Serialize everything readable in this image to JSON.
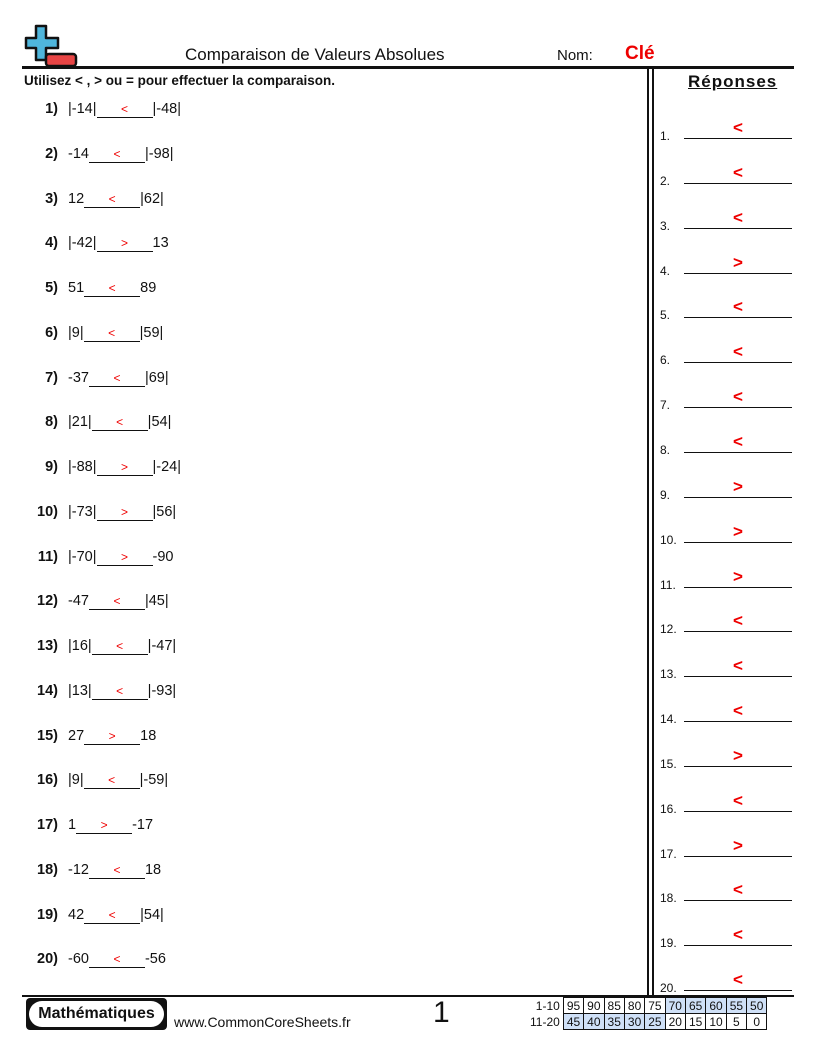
{
  "header": {
    "title": "Comparaison de Valeurs Absolues",
    "name_label": "Nom:",
    "name_value": "Clé"
  },
  "instructions": "Utilisez < , > ou = pour effectuer la comparaison.",
  "answers_title": "Réponses",
  "problems": [
    {
      "num": "1)",
      "left": "|-14|",
      "answer": "<",
      "right": "|-48|"
    },
    {
      "num": "2)",
      "left": "-14",
      "answer": "<",
      "right": "|-98|"
    },
    {
      "num": "3)",
      "left": "12",
      "answer": "<",
      "right": "|62|"
    },
    {
      "num": "4)",
      "left": "|-42|",
      "answer": ">",
      "right": "13"
    },
    {
      "num": "5)",
      "left": "51",
      "answer": "<",
      "right": "89"
    },
    {
      "num": "6)",
      "left": "|9|",
      "answer": "<",
      "right": "|59|"
    },
    {
      "num": "7)",
      "left": "-37",
      "answer": "<",
      "right": "|69|"
    },
    {
      "num": "8)",
      "left": "|21|",
      "answer": "<",
      "right": "|54|"
    },
    {
      "num": "9)",
      "left": "|-88|",
      "answer": ">",
      "right": "|-24|"
    },
    {
      "num": "10)",
      "left": "|-73|",
      "answer": ">",
      "right": "|56|"
    },
    {
      "num": "11)",
      "left": "|-70|",
      "answer": ">",
      "right": "-90"
    },
    {
      "num": "12)",
      "left": "-47",
      "answer": "<",
      "right": "|45|"
    },
    {
      "num": "13)",
      "left": "|16|",
      "answer": "<",
      "right": "|-47|"
    },
    {
      "num": "14)",
      "left": "|13|",
      "answer": "<",
      "right": "|-93|"
    },
    {
      "num": "15)",
      "left": "27",
      "answer": ">",
      "right": "18"
    },
    {
      "num": "16)",
      "left": "|9|",
      "answer": "<",
      "right": "|-59|"
    },
    {
      "num": "17)",
      "left": "1",
      "answer": ">",
      "right": "-17"
    },
    {
      "num": "18)",
      "left": "-12",
      "answer": "<",
      "right": "18"
    },
    {
      "num": "19)",
      "left": "42",
      "answer": "<",
      "right": "|54|"
    },
    {
      "num": "20)",
      "left": "-60",
      "answer": "<",
      "right": "-56"
    }
  ],
  "answer_key": [
    {
      "num": "1.",
      "value": "<"
    },
    {
      "num": "2.",
      "value": "<"
    },
    {
      "num": "3.",
      "value": "<"
    },
    {
      "num": "4.",
      "value": ">"
    },
    {
      "num": "5.",
      "value": "<"
    },
    {
      "num": "6.",
      "value": "<"
    },
    {
      "num": "7.",
      "value": "<"
    },
    {
      "num": "8.",
      "value": "<"
    },
    {
      "num": "9.",
      "value": ">"
    },
    {
      "num": "10.",
      "value": ">"
    },
    {
      "num": "11.",
      "value": ">"
    },
    {
      "num": "12.",
      "value": "<"
    },
    {
      "num": "13.",
      "value": "<"
    },
    {
      "num": "14.",
      "value": "<"
    },
    {
      "num": "15.",
      "value": ">"
    },
    {
      "num": "16.",
      "value": "<"
    },
    {
      "num": "17.",
      "value": ">"
    },
    {
      "num": "18.",
      "value": "<"
    },
    {
      "num": "19.",
      "value": "<"
    },
    {
      "num": "20.",
      "value": "<"
    }
  ],
  "footer": {
    "brand": "Mathématiques",
    "site": "www.CommonCoreSheets.fr",
    "page": "1",
    "score_rows": [
      {
        "label": "1-10",
        "values": [
          "95",
          "90",
          "85",
          "80",
          "75",
          "70",
          "65",
          "60",
          "55",
          "50"
        ],
        "highlight": [
          false,
          false,
          false,
          false,
          false,
          true,
          true,
          true,
          true,
          true
        ]
      },
      {
        "label": "11-20",
        "values": [
          "45",
          "40",
          "35",
          "30",
          "25",
          "20",
          "15",
          "10",
          "5",
          "0"
        ],
        "highlight": [
          true,
          true,
          true,
          true,
          true,
          false,
          false,
          false,
          false,
          false
        ]
      }
    ]
  },
  "colors": {
    "answer": "#ee0000",
    "logo_plus": "#4fb6dc",
    "logo_minus": "#e84545",
    "score_highlight": "#cfe0f7"
  }
}
